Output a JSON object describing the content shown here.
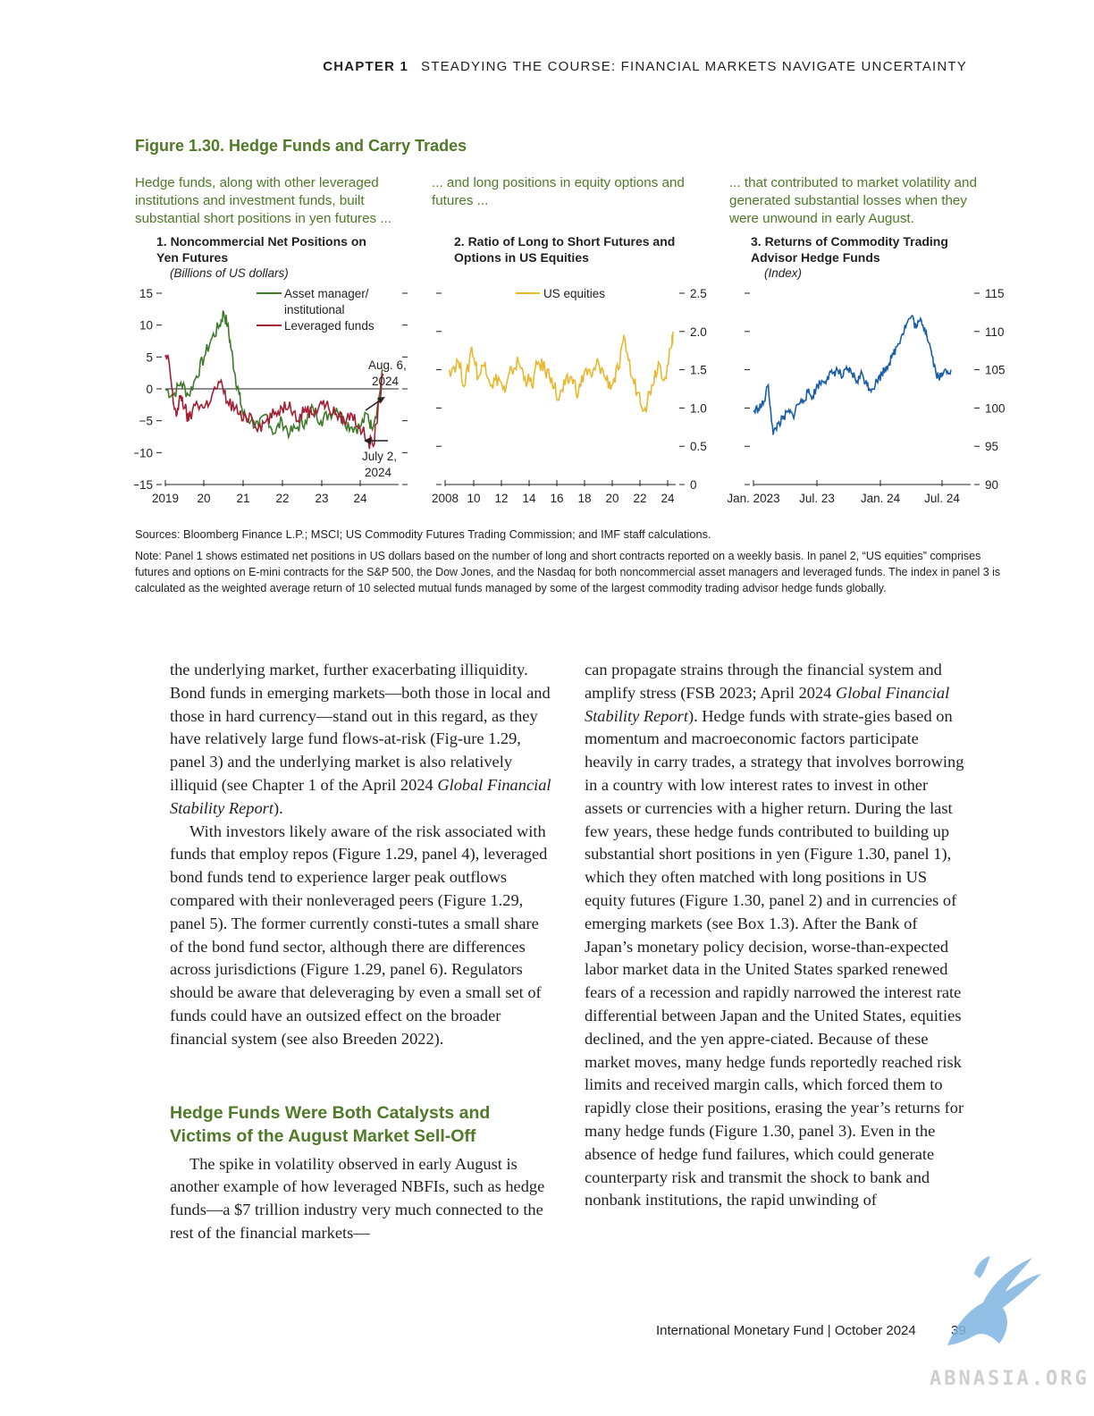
{
  "header": {
    "chapter": "CHAPTER 1",
    "title": "STEADYING THE COURSE: FINANCIAL MARKETS NAVIGATE UNCERTAINTY"
  },
  "figure": {
    "title": "Figure 1.30. Hedge Funds and Carry Trades",
    "leads": [
      "Hedge funds, along with other leveraged institutions and investment funds, built substantial short positions in yen futures ...",
      "... and long positions in equity options and futures ...",
      "... that contributed to market volatility and generated substantial losses when they were unwound in early August."
    ],
    "panels": [
      {
        "title": "1. Noncommercial Net Positions on Yen Futures",
        "unit": "(Billions of US dollars)"
      },
      {
        "title": "2. Ratio of Long to Short Futures and Options in US Equities",
        "unit": ""
      },
      {
        "title": "3. Returns of Commodity Trading Advisor Hedge Funds",
        "unit": "(Index)"
      }
    ],
    "sources": "Sources: Bloomberg Finance L.P.; MSCI; US Commodity Futures Trading Commission; and IMF staff calculations.",
    "note": "Note: Panel 1 shows estimated net positions in US dollars based on the number of long and short contracts reported on a weekly basis. In panel 2, “US equities” comprises futures and options on E-mini contracts for the S&P 500, the Dow Jones, and the Nasdaq for both noncommercial asset managers and leveraged funds. The index in panel 3 is calculated as the weighted average return of 10 selected mutual funds managed by some of the largest commodity trading advisor hedge funds globally."
  },
  "chart_data": [
    {
      "type": "line",
      "title": "1. Noncommercial Net Positions on Yen Futures",
      "ylabel": "(Billions of US dollars)",
      "ylim": [
        -15,
        15
      ],
      "yticks": [
        "15",
        "10",
        "5",
        "0",
        "−5",
        "−10",
        "−15"
      ],
      "xticks": [
        "2019",
        "20",
        "21",
        "22",
        "23",
        "24"
      ],
      "legend": [
        "Asset manager/ institutional",
        "Leveraged funds"
      ],
      "annotations": [
        "Aug. 6, 2024",
        "July 2, 2024"
      ],
      "series": [
        {
          "name": "Asset manager/ institutional",
          "color": "#3f7a2a",
          "x": [
            2019.0,
            2019.2,
            2019.4,
            2019.6,
            2019.8,
            2020.0,
            2020.2,
            2020.4,
            2020.5,
            2020.6,
            2020.7,
            2020.8,
            2020.9,
            2021.0,
            2021.2,
            2021.4,
            2021.6,
            2021.8,
            2022.0,
            2022.2,
            2022.4,
            2022.6,
            2022.8,
            2023.0,
            2023.2,
            2023.4,
            2023.6,
            2023.8,
            2024.0,
            2024.2,
            2024.3,
            2024.45,
            2024.6
          ],
          "y": [
            0,
            -1,
            1,
            -1,
            2,
            5,
            8,
            10,
            12,
            10,
            6,
            2,
            -1,
            -4,
            -5,
            -6,
            -4,
            -7,
            -5,
            -7,
            -6,
            -5,
            -3,
            -5,
            -4,
            -3,
            -5,
            -6,
            -6,
            -4,
            -6,
            -3,
            3
          ]
        },
        {
          "name": "Leveraged funds",
          "color": "#a31f34",
          "x": [
            2019.0,
            2019.1,
            2019.2,
            2019.3,
            2019.4,
            2019.5,
            2019.6,
            2019.8,
            2020.0,
            2020.2,
            2020.4,
            2020.6,
            2020.8,
            2021.0,
            2021.2,
            2021.4,
            2021.6,
            2021.8,
            2022.0,
            2022.2,
            2022.4,
            2022.6,
            2022.8,
            2023.0,
            2023.2,
            2023.4,
            2023.6,
            2023.8,
            2024.0,
            2024.2,
            2024.35,
            2024.5,
            2024.6
          ],
          "y": [
            5,
            4,
            -2,
            -4,
            -1,
            -3,
            -5,
            -2,
            -3,
            -1,
            1,
            -2,
            -3,
            -5,
            -4,
            -6,
            -5,
            -4,
            -3,
            -2,
            -5,
            -3,
            -4,
            -2,
            -3,
            -4,
            -5,
            -4,
            -6,
            -8,
            -9,
            -2,
            2
          ]
        }
      ]
    },
    {
      "type": "line",
      "title": "2. Ratio of Long to Short Futures and Options in US Equities",
      "ylim": [
        0,
        2.5
      ],
      "yticks": [
        "2.5",
        "2.0",
        "1.5",
        "1.0",
        "0.5",
        "0"
      ],
      "xticks": [
        "2008",
        "10",
        "12",
        "14",
        "16",
        "18",
        "20",
        "22",
        "24"
      ],
      "legend": [
        "US equities"
      ],
      "series": [
        {
          "name": "US equities",
          "color": "#e8b830",
          "x": [
            2007.8,
            2008.5,
            2009,
            2009.5,
            2010,
            2010.5,
            2011,
            2011.5,
            2012,
            2012.5,
            2013,
            2013.5,
            2014,
            2014.5,
            2015,
            2015.5,
            2016,
            2016.5,
            2017,
            2017.5,
            2018,
            2018.5,
            2019,
            2019.5,
            2020,
            2020.5,
            2021,
            2021.5,
            2022,
            2022.5,
            2023,
            2023.5,
            2024,
            2024.5,
            2024.6
          ],
          "y": [
            1.5,
            1.6,
            1.3,
            1.8,
            1.4,
            1.6,
            1.3,
            1.4,
            1.2,
            1.5,
            1.6,
            1.4,
            1.3,
            1.6,
            1.5,
            1.4,
            1.1,
            1.3,
            1.4,
            1.2,
            1.5,
            1.4,
            1.6,
            1.4,
            1.3,
            1.5,
            1.9,
            1.4,
            1.2,
            1.0,
            1.3,
            1.6,
            1.4,
            1.8,
            2.0
          ]
        }
      ]
    },
    {
      "type": "line",
      "title": "3. Returns of Commodity Trading Advisor Hedge Funds",
      "ylabel": "(Index)",
      "ylim": [
        90,
        115
      ],
      "yticks": [
        "115",
        "110",
        "105",
        "100",
        "95",
        "90"
      ],
      "xticks": [
        "Jan. 2023",
        "Jul. 23",
        "Jan. 24",
        "Jul. 24"
      ],
      "series": [
        {
          "name": "",
          "color": "#1a5ea8",
          "x": [
            0,
            0.5,
            1,
            1.5,
            2,
            2.5,
            3,
            3.5,
            4,
            4.5,
            5,
            5.5,
            6,
            6.5,
            7,
            7.5,
            8,
            8.5,
            9,
            9.5,
            10,
            10.5,
            11,
            11.5,
            12,
            12.5,
            13,
            13.5,
            14,
            14.5,
            15,
            15.5,
            16,
            16.5,
            17,
            17.5,
            18,
            18.5,
            19,
            19.5,
            20
          ],
          "y": [
            99.5,
            100,
            100.5,
            103,
            96.5,
            98,
            98.5,
            99.5,
            99,
            100.5,
            101,
            102,
            101.5,
            103,
            103.5,
            104,
            104.5,
            105,
            104,
            105,
            104.5,
            103.5,
            104.5,
            103,
            102.5,
            103.5,
            104.5,
            105.5,
            106.5,
            108,
            109.5,
            111,
            112,
            110.5,
            111.5,
            110,
            107.5,
            104.5,
            104,
            105,
            105
          ]
        }
      ]
    }
  ],
  "body": {
    "left": {
      "p1": "the underlying market, further exacerbating illiquidity. Bond funds in emerging markets—both those in local and those in hard currency—stand out in this regard, as they have relatively large fund flows-at-risk (Fig-ure 1.29, panel 3) and the underlying market is also relatively illiquid (see Chapter 1 of the April 2024",
      "p1_italic": "Global Financial Stability Report",
      "p1_end": ").",
      "p2": "With investors likely aware of the risk associated with funds that employ repos (Figure 1.29, panel 4), leveraged bond funds tend to experience larger peak outflows compared with their nonleveraged peers (Figure 1.29, panel 5). The former currently consti-tutes a small share of the bond fund sector, although there are differences across jurisdictions (Figure 1.29, panel 6). Regulators should be aware that deleveraging by even a small set of funds could have an outsized effect on the broader financial system (see also Breeden 2022).",
      "heading": "Hedge Funds Were Both Catalysts and Victims of the August Market Sell-Off",
      "p3": "The spike in volatility observed in early August is another example of how leveraged NBFIs, such as hedge funds—a $7 trillion industry very much connected to the rest of the financial markets—"
    },
    "right": {
      "p1a": "can propagate strains through the financial system and amplify stress (FSB 2023; April 2024",
      "p1_italic": "Global Financial Stability Report",
      "p1b": "). Hedge funds with strate-gies based on momentum and macroeconomic factors participate heavily in carry trades, a strategy that involves borrowing in a country with low interest rates to invest in other assets or currencies with a higher return. During the last few years, these hedge funds contributed to building up substantial short positions in yen (Figure 1.30, panel 1), which they often matched with long positions in US equity futures (Figure 1.30, panel 2) and in currencies of emerging markets (see Box 1.3). After the Bank of Japan’s monetary policy decision, worse-than-expected labor market data in the United States sparked renewed fears of a recession and rapidly narrowed the interest rate differential between Japan and the United States, equities declined, and the yen appre-ciated. Because of these market moves, many hedge funds reportedly reached risk limits and received margin calls, which forced them to rapidly close their positions, erasing the year’s returns for many hedge funds (Figure 1.30, panel 3). Even in the absence of hedge fund failures, which could generate counterparty risk and transmit the shock to bank and nonbank institutions, the rapid unwinding of"
    }
  },
  "footer": {
    "text": "International Monetary Fund | October 2024",
    "page": "39"
  },
  "watermark": "ABNASIA.ORG"
}
